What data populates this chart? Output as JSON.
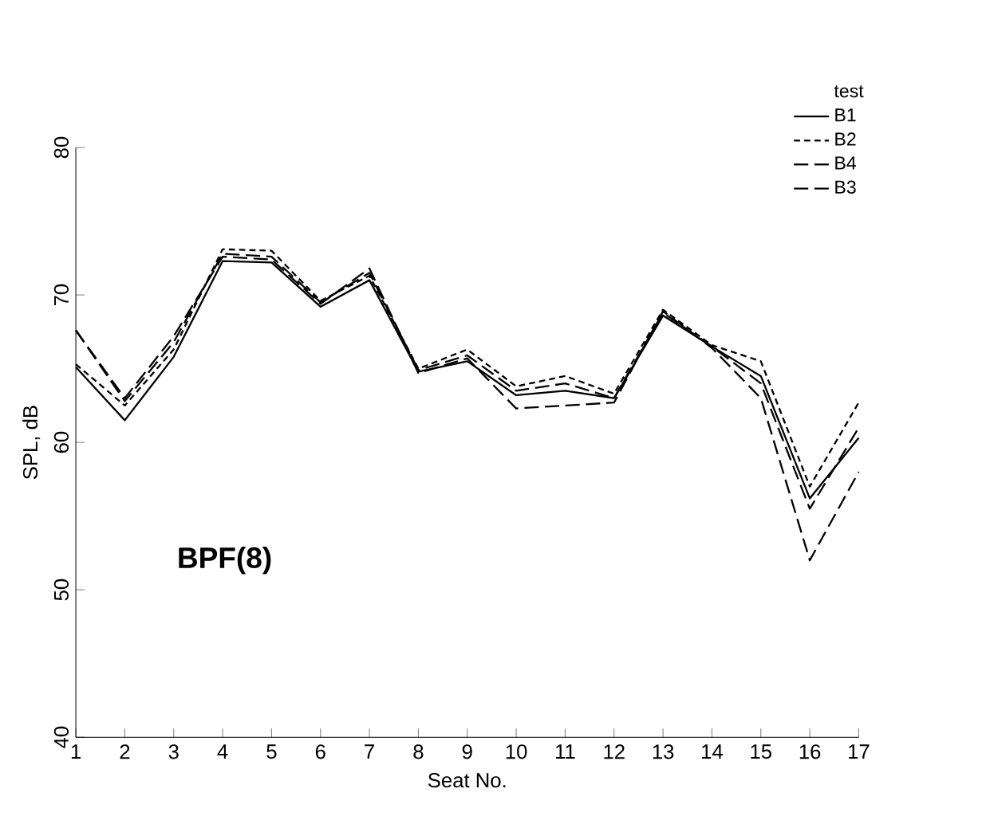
{
  "chart_data": {
    "type": "line",
    "xlabel": "Seat No.",
    "ylabel": "SPL, dB",
    "legend_title": "test",
    "legend": "top right",
    "annotations": [
      "BPF(8)"
    ],
    "x": [
      1,
      2,
      3,
      4,
      5,
      6,
      7,
      8,
      9,
      10,
      11,
      12,
      13,
      14,
      15,
      16,
      17
    ],
    "xlim": [
      1,
      17
    ],
    "xticks": [
      1,
      2,
      3,
      4,
      5,
      6,
      7,
      8,
      9,
      10,
      11,
      12,
      13,
      14,
      15,
      16,
      17
    ],
    "ylim": [
      40,
      80
    ],
    "yticks": [
      40,
      50,
      60,
      70,
      80
    ],
    "grid": false,
    "marker": "none",
    "series": [
      {
        "name": "B1",
        "color": "#000000",
        "line_style": "solid",
        "values": [
          65.1,
          61.5,
          65.8,
          72.3,
          72.2,
          69.2,
          71.0,
          64.8,
          65.5,
          63.2,
          63.5,
          63.0,
          68.6,
          66.5,
          64.5,
          56.2,
          60.3
        ]
      },
      {
        "name": "B2",
        "color": "#000000",
        "line_style": "dotted",
        "values": [
          65.3,
          62.5,
          66.3,
          73.1,
          73.0,
          69.6,
          71.3,
          65.0,
          66.3,
          63.8,
          64.5,
          63.3,
          69.0,
          66.6,
          65.5,
          57.0,
          62.7
        ]
      },
      {
        "name": "B4",
        "color": "#000000",
        "line_style": "dashed",
        "values": [
          67.6,
          62.8,
          66.8,
          72.8,
          72.6,
          69.5,
          71.5,
          64.9,
          65.9,
          63.5,
          64.0,
          63.0,
          68.8,
          66.5,
          64.0,
          55.5,
          61.0
        ]
      },
      {
        "name": "B3",
        "color": "#000000",
        "line_style": "dashed",
        "values": [
          67.6,
          63.0,
          67.2,
          72.6,
          72.4,
          69.4,
          71.8,
          64.7,
          65.7,
          62.3,
          62.5,
          62.7,
          68.9,
          66.4,
          63.0,
          52.0,
          58.0
        ]
      }
    ]
  }
}
